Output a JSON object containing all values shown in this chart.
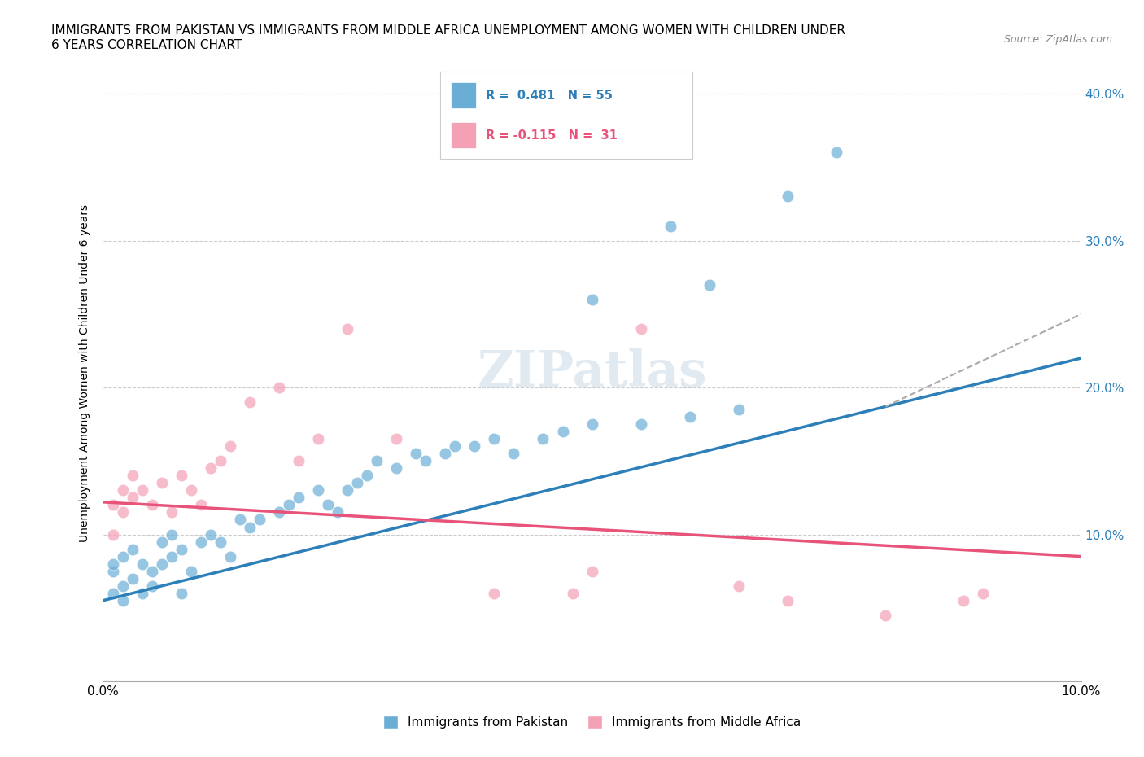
{
  "title_line1": "IMMIGRANTS FROM PAKISTAN VS IMMIGRANTS FROM MIDDLE AFRICA UNEMPLOYMENT AMONG WOMEN WITH CHILDREN UNDER",
  "title_line2": "6 YEARS CORRELATION CHART",
  "source": "Source: ZipAtlas.com",
  "ylabel": "Unemployment Among Women with Children Under 6 years",
  "xlim": [
    0.0,
    0.1
  ],
  "ylim": [
    0.0,
    0.42
  ],
  "pakistan_color": "#6aaed6",
  "pakistan_line_color": "#2c7fb8",
  "middle_africa_color": "#f4a0b5",
  "middle_africa_line_color": "#e8537a",
  "pakistan_R": 0.481,
  "pakistan_N": 55,
  "middle_africa_R": -0.115,
  "middle_africa_N": 31,
  "watermark": "ZIPatlas",
  "pakistan_scatter_x": [
    0.001,
    0.001,
    0.001,
    0.002,
    0.002,
    0.002,
    0.003,
    0.003,
    0.004,
    0.004,
    0.005,
    0.005,
    0.006,
    0.006,
    0.007,
    0.007,
    0.008,
    0.008,
    0.009,
    0.01,
    0.011,
    0.012,
    0.013,
    0.014,
    0.015,
    0.016,
    0.018,
    0.019,
    0.02,
    0.022,
    0.023,
    0.024,
    0.025,
    0.026,
    0.027,
    0.028,
    0.03,
    0.032,
    0.033,
    0.035,
    0.036,
    0.038,
    0.04,
    0.042,
    0.045,
    0.047,
    0.05,
    0.055,
    0.06,
    0.065,
    0.05,
    0.058,
    0.062,
    0.07,
    0.075
  ],
  "pakistan_scatter_y": [
    0.075,
    0.06,
    0.08,
    0.055,
    0.065,
    0.085,
    0.07,
    0.09,
    0.06,
    0.08,
    0.065,
    0.075,
    0.08,
    0.095,
    0.085,
    0.1,
    0.06,
    0.09,
    0.075,
    0.095,
    0.1,
    0.095,
    0.085,
    0.11,
    0.105,
    0.11,
    0.115,
    0.12,
    0.125,
    0.13,
    0.12,
    0.115,
    0.13,
    0.135,
    0.14,
    0.15,
    0.145,
    0.155,
    0.15,
    0.155,
    0.16,
    0.16,
    0.165,
    0.155,
    0.165,
    0.17,
    0.175,
    0.175,
    0.18,
    0.185,
    0.26,
    0.31,
    0.27,
    0.33,
    0.36
  ],
  "africa_scatter_x": [
    0.001,
    0.001,
    0.002,
    0.002,
    0.003,
    0.003,
    0.004,
    0.005,
    0.006,
    0.007,
    0.008,
    0.009,
    0.01,
    0.011,
    0.012,
    0.013,
    0.015,
    0.018,
    0.02,
    0.022,
    0.025,
    0.03,
    0.04,
    0.048,
    0.05,
    0.055,
    0.065,
    0.07,
    0.08,
    0.088,
    0.09
  ],
  "africa_scatter_y": [
    0.1,
    0.12,
    0.115,
    0.13,
    0.125,
    0.14,
    0.13,
    0.12,
    0.135,
    0.115,
    0.14,
    0.13,
    0.12,
    0.145,
    0.15,
    0.16,
    0.19,
    0.2,
    0.15,
    0.165,
    0.24,
    0.165,
    0.06,
    0.06,
    0.075,
    0.24,
    0.065,
    0.055,
    0.045,
    0.055,
    0.06
  ],
  "pk_line_x0": 0.0,
  "pk_line_y0": 0.055,
  "pk_line_x1": 0.1,
  "pk_line_y1": 0.22,
  "af_line_x0": 0.0,
  "af_line_y0": 0.122,
  "af_line_x1": 0.1,
  "af_line_y1": 0.085
}
